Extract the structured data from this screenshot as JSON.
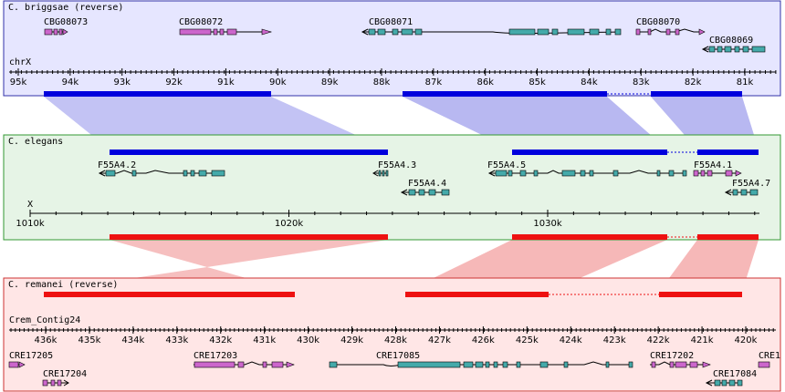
{
  "colors": {
    "briggsae_bg": "#e6e6ff",
    "briggsae_border": "#3333aa",
    "elegans_bg": "#e6f4e6",
    "elegans_border": "#339933",
    "remanei_bg": "#ffe6e6",
    "remanei_border": "#cc3333",
    "blue_block": "#0000dd",
    "red_block": "#ee1111",
    "blue_link": "#b0b0f0",
    "red_link": "#f5b0b0",
    "gene_magenta": "#cc66cc",
    "gene_teal": "#44aaaa"
  },
  "panels": {
    "briggsae": {
      "title": "C. briggsae (reverse)",
      "chrom": "chrX",
      "ticks": [
        {
          "label": "95k",
          "at": 95
        },
        {
          "label": "94k",
          "at": 94
        },
        {
          "label": "93k",
          "at": 93
        },
        {
          "label": "92k",
          "at": 92
        },
        {
          "label": "91k",
          "at": 91
        },
        {
          "label": "90k",
          "at": 90
        },
        {
          "label": "89k",
          "at": 89
        },
        {
          "label": "88k",
          "at": 88
        },
        {
          "label": "87k",
          "at": 87
        },
        {
          "label": "86k",
          "at": 86
        },
        {
          "label": "85k",
          "at": 85
        },
        {
          "label": "84k",
          "at": 84
        },
        {
          "label": "83k",
          "at": 83
        },
        {
          "label": "82k",
          "at": 82
        },
        {
          "label": "81k",
          "at": 81
        }
      ],
      "genes": [
        {
          "name": "CBG08073",
          "color": "magenta",
          "dir": "right"
        },
        {
          "name": "CBG08072",
          "color": "magenta",
          "dir": "right"
        },
        {
          "name": "CBG08071",
          "color": "teal",
          "dir": "left"
        },
        {
          "name": "CBG08070",
          "color": "magenta",
          "dir": "right"
        },
        {
          "name": "CBG08069",
          "color": "teal",
          "dir": "left"
        }
      ]
    },
    "elegans": {
      "title": "C. elegans",
      "chrom": "X",
      "ticks": [
        {
          "label": "1010k",
          "at": 1010
        },
        {
          "label": "1020k",
          "at": 1020
        },
        {
          "label": "1030k",
          "at": 1030
        }
      ],
      "genes": [
        {
          "name": "F55A4.2",
          "color": "teal",
          "dir": "left"
        },
        {
          "name": "F55A4.3",
          "color": "teal",
          "dir": "left"
        },
        {
          "name": "F55A4.4",
          "color": "teal",
          "dir": "left"
        },
        {
          "name": "F55A4.5",
          "color": "teal",
          "dir": "left"
        },
        {
          "name": "F55A4.1",
          "color": "magenta",
          "dir": "right"
        },
        {
          "name": "F55A4.7",
          "color": "teal",
          "dir": "left"
        }
      ]
    },
    "remanei": {
      "title": "C. remanei (reverse)",
      "chrom": "Crem_Contig24",
      "ticks": [
        {
          "label": "436k",
          "at": 436
        },
        {
          "label": "435k",
          "at": 435
        },
        {
          "label": "434k",
          "at": 434
        },
        {
          "label": "433k",
          "at": 433
        },
        {
          "label": "432k",
          "at": 432
        },
        {
          "label": "431k",
          "at": 431
        },
        {
          "label": "430k",
          "at": 430
        },
        {
          "label": "429k",
          "at": 429
        },
        {
          "label": "428k",
          "at": 428
        },
        {
          "label": "427k",
          "at": 427
        },
        {
          "label": "426k",
          "at": 426
        },
        {
          "label": "425k",
          "at": 425
        },
        {
          "label": "424k",
          "at": 424
        },
        {
          "label": "423k",
          "at": 423
        },
        {
          "label": "422k",
          "at": 422
        },
        {
          "label": "421k",
          "at": 421
        },
        {
          "label": "420k",
          "at": 420
        }
      ],
      "genes": [
        {
          "name": "CRE17205",
          "color": "magenta",
          "dir": "right"
        },
        {
          "name": "CRE17204",
          "color": "magenta",
          "dir": "right"
        },
        {
          "name": "CRE17203",
          "color": "magenta",
          "dir": "right"
        },
        {
          "name": "CRE17085",
          "color": "teal",
          "dir": "left"
        },
        {
          "name": "CRE17202",
          "color": "magenta",
          "dir": "right"
        },
        {
          "name": "CRE17084",
          "color": "teal",
          "dir": "left"
        },
        {
          "name": "CRE1",
          "color": "magenta",
          "dir": "right"
        }
      ]
    }
  }
}
